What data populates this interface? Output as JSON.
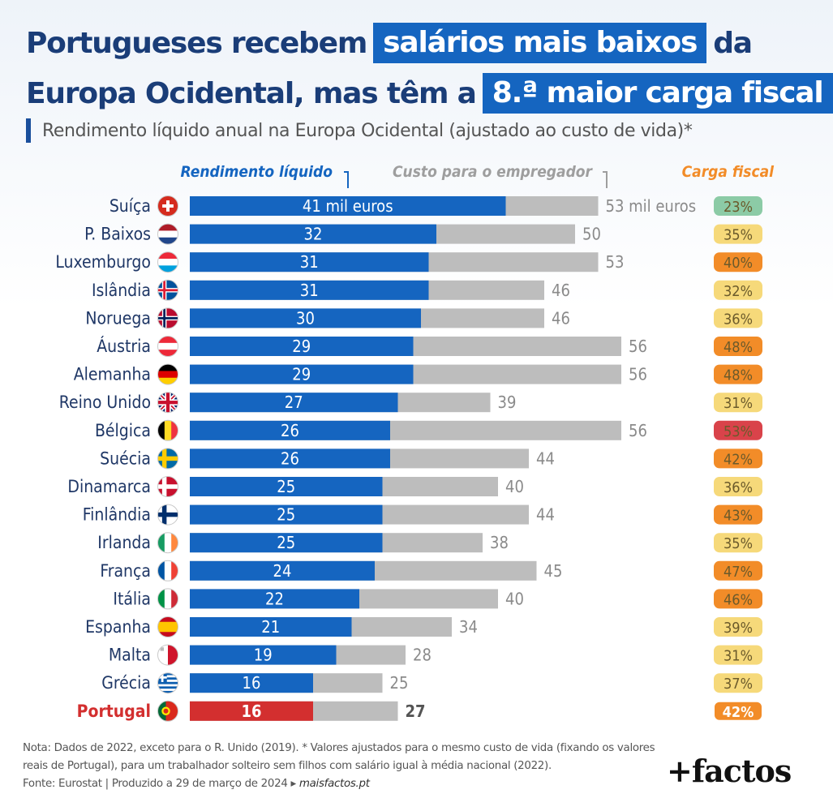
{
  "title": {
    "line1_pre": "Portugueses recebem",
    "line1_highlight": "salários mais baixos",
    "line1_post": "da",
    "line2_pre": "Europa Ocidental, mas têm a",
    "line2_highlight": "8.ª maior carga fiscal"
  },
  "subtitle": "Rendimento líquido anual na Europa Ocidental (ajustado ao custo de vida)*",
  "chart_data": {
    "type": "bar",
    "orientation": "horizontal",
    "stacked": "overlapping",
    "legend_labels": {
      "net": "Rendimento líquido",
      "cost": "Custo para o empregador",
      "tax": "Carga fiscal"
    },
    "unit_first_net": "41 mil euros",
    "unit_first_cost": "53 mil euros",
    "categories": [
      "Suíça",
      "P. Baixos",
      "Luxemburgo",
      "Islândia",
      "Noruega",
      "Áustria",
      "Alemanha",
      "Reino Unido",
      "Bélgica",
      "Suécia",
      "Dinamarca",
      "Finlândia",
      "Irlanda",
      "França",
      "Itália",
      "Espanha",
      "Malta",
      "Grécia",
      "Portugal"
    ],
    "series": [
      {
        "name": "Rendimento líquido",
        "values": [
          41,
          32,
          31,
          31,
          30,
          29,
          29,
          27,
          26,
          26,
          25,
          25,
          25,
          24,
          22,
          21,
          19,
          16,
          16
        ]
      },
      {
        "name": "Custo para o empregador",
        "values": [
          53,
          50,
          53,
          46,
          46,
          56,
          56,
          39,
          56,
          44,
          40,
          44,
          38,
          45,
          40,
          34,
          28,
          25,
          27
        ]
      },
      {
        "name": "Carga fiscal",
        "values": [
          "23%",
          "35%",
          "40%",
          "32%",
          "36%",
          "48%",
          "48%",
          "31%",
          "53%",
          "42%",
          "36%",
          "43%",
          "35%",
          "47%",
          "46%",
          "39%",
          "31%",
          "37%",
          "42%"
        ]
      }
    ],
    "highlight_category": "Portugal",
    "colors": {
      "net": "#1565c0",
      "cost": "#bdbdbd",
      "highlight": "#d32f2f",
      "legend_tax": "#f28c28",
      "tax_green": "#8ccba6",
      "tax_yellow": "#f6d97a",
      "tax_orange": "#f28c28",
      "tax_red": "#d9434a"
    },
    "flags": [
      "ch",
      "nl",
      "lu",
      "is",
      "no",
      "at",
      "de",
      "gb",
      "be",
      "se",
      "dk",
      "fi",
      "ie",
      "fr",
      "it",
      "es",
      "mt",
      "gr",
      "pt"
    ]
  },
  "footer": {
    "note": "Nota: Dados de 2022, exceto para o R. Unido (2019). * Valores ajustados para o mesmo custo de vida (fixando os valores reais de Portugal), para um trabalhador solteiro sem filhos com salário igual à média nacional (2022).",
    "source": "Fonte: Eurostat  |  Produzido a 29 de março de 2024 ▸",
    "site": "maisfactos.pt"
  },
  "logo": "+factos"
}
